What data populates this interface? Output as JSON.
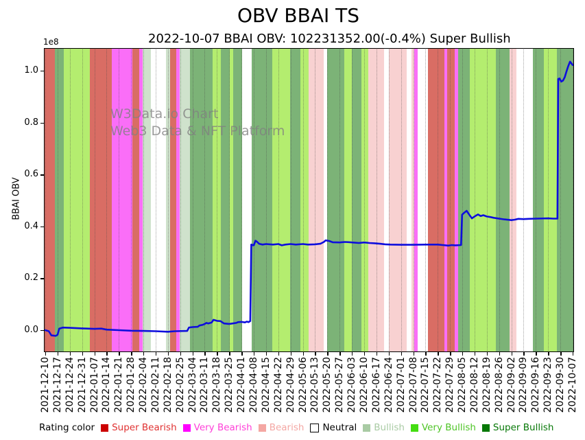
{
  "title": "OBV BBAI TS",
  "subtitle": "2022-10-07 BBAI OBV: 102231352.00(-0.4%) Super Bullish",
  "watermark": {
    "line1": "W3Data.io Chart",
    "line2": "Web3 Data & NFT Platform"
  },
  "y_axis": {
    "label": "BBAI OBV",
    "offset_text": "1e8",
    "ticks": [
      "0.0",
      "0.2",
      "0.4",
      "0.6",
      "0.8",
      "1.0"
    ]
  },
  "x_axis": {
    "ticks": [
      "2021-12-10",
      "2021-12-17",
      "2021-12-24",
      "2021-12-31",
      "2022-01-07",
      "2022-01-14",
      "2022-01-21",
      "2022-01-28",
      "2022-02-04",
      "2022-02-11",
      "2022-02-18",
      "2022-02-25",
      "2022-03-04",
      "2022-03-11",
      "2022-03-18",
      "2022-03-25",
      "2022-04-01",
      "2022-04-08",
      "2022-04-15",
      "2022-04-22",
      "2022-04-29",
      "2022-05-06",
      "2022-05-13",
      "2022-05-20",
      "2022-05-27",
      "2022-06-03",
      "2022-06-10",
      "2022-06-17",
      "2022-06-24",
      "2022-07-01",
      "2022-07-08",
      "2022-07-15",
      "2022-07-22",
      "2022-07-29",
      "2022-08-05",
      "2022-08-12",
      "2022-08-19",
      "2022-08-26",
      "2022-09-02",
      "2022-09-09",
      "2022-09-16",
      "2022-09-23",
      "2022-09-30",
      "2022-10-07"
    ]
  },
  "legend": {
    "title": "Rating color",
    "items": [
      {
        "label": "Super Bearish",
        "swatch": "#cc0000",
        "text_color": "#e03131",
        "swatch_border": "none"
      },
      {
        "label": "Very Bearish",
        "swatch": "#ff00ff",
        "text_color": "#ff3fd8",
        "swatch_border": "none"
      },
      {
        "label": "Bearish",
        "swatch": "#f4a7a3",
        "text_color": "#f4a7a3",
        "swatch_border": "none"
      },
      {
        "label": "Neutral",
        "swatch": "#ffffff",
        "text_color": "#000000",
        "swatch_border": "#000000"
      },
      {
        "label": "Bullish",
        "swatch": "#a9cba4",
        "text_color": "#a9cba4",
        "swatch_border": "none"
      },
      {
        "label": "Very Bullish",
        "swatch": "#44dd11",
        "text_color": "#4ec426",
        "swatch_border": "none"
      },
      {
        "label": "Super Bullish",
        "swatch": "#077807",
        "text_color": "#077807",
        "swatch_border": "none"
      }
    ]
  },
  "chart_data": {
    "type": "line",
    "title": "OBV BBAI TS",
    "series_name": "BBAI OBV",
    "unit_scale": "1e8",
    "line_color": "#0d0ddd",
    "grid": "vertical-dotted-weekly",
    "ylim": [
      -0.082,
      1.087
    ],
    "x_start_date": "2021-12-10",
    "x_end_date": "2022-10-07",
    "last_value": 102231352.0,
    "last_change_pct": -0.4,
    "last_rating": "Super Bullish",
    "points_day_value": [
      [
        0,
        0
      ],
      [
        2,
        -0.004
      ],
      [
        3.5,
        -0.02
      ],
      [
        6,
        -0.022
      ],
      [
        7,
        -0.018
      ],
      [
        8,
        0.006
      ],
      [
        10,
        0.01
      ],
      [
        14,
        0.009
      ],
      [
        21,
        0.007
      ],
      [
        28,
        0.005
      ],
      [
        32,
        0.006
      ],
      [
        35,
        0.002
      ],
      [
        42,
        0
      ],
      [
        49,
        -0.002
      ],
      [
        56,
        -0.003
      ],
      [
        63,
        -0.004
      ],
      [
        70,
        -0.006
      ],
      [
        74,
        -0.004
      ],
      [
        81,
        -0.003
      ],
      [
        82,
        0.01
      ],
      [
        84,
        0.012
      ],
      [
        87,
        0.013
      ],
      [
        88,
        0.018
      ],
      [
        90,
        0.021
      ],
      [
        91,
        0.024
      ],
      [
        92,
        0.028
      ],
      [
        93,
        0.026
      ],
      [
        95,
        0.03
      ],
      [
        96,
        0.04
      ],
      [
        97,
        0.038
      ],
      [
        98,
        0.036
      ],
      [
        100,
        0.035
      ],
      [
        102,
        0.026
      ],
      [
        105,
        0.024
      ],
      [
        107,
        0.026
      ],
      [
        109,
        0.028
      ],
      [
        110,
        0.031
      ],
      [
        112,
        0.032
      ],
      [
        114,
        0.03
      ],
      [
        115,
        0.033
      ],
      [
        116,
        0.031
      ],
      [
        117,
        0.035
      ],
      [
        117.6,
        0.33
      ],
      [
        119,
        0.327
      ],
      [
        120,
        0.345
      ],
      [
        121,
        0.34
      ],
      [
        122,
        0.333
      ],
      [
        124,
        0.33
      ],
      [
        126,
        0.332
      ],
      [
        130,
        0.33
      ],
      [
        133,
        0.332
      ],
      [
        135,
        0.327
      ],
      [
        137,
        0.33
      ],
      [
        140,
        0.332
      ],
      [
        143,
        0.33
      ],
      [
        147,
        0.332
      ],
      [
        150,
        0.33
      ],
      [
        154,
        0.331
      ],
      [
        157,
        0.333
      ],
      [
        159,
        0.34
      ],
      [
        160,
        0.346
      ],
      [
        162,
        0.344
      ],
      [
        164,
        0.339
      ],
      [
        168,
        0.338
      ],
      [
        171,
        0.34
      ],
      [
        174,
        0.339
      ],
      [
        179,
        0.336
      ],
      [
        182,
        0.338
      ],
      [
        185,
        0.336
      ],
      [
        188,
        0.335
      ],
      [
        191,
        0.333
      ],
      [
        194,
        0.331
      ],
      [
        197,
        0.33
      ],
      [
        203,
        0.329
      ],
      [
        210,
        0.329
      ],
      [
        217,
        0.33
      ],
      [
        224,
        0.33
      ],
      [
        227,
        0.328
      ],
      [
        230,
        0.326
      ],
      [
        232,
        0.328
      ],
      [
        234,
        0.327
      ],
      [
        237.3,
        0.328
      ],
      [
        237.9,
        0.445
      ],
      [
        239,
        0.452
      ],
      [
        240.5,
        0.46
      ],
      [
        242,
        0.445
      ],
      [
        243.5,
        0.431
      ],
      [
        245,
        0.438
      ],
      [
        247,
        0.446
      ],
      [
        248.5,
        0.44
      ],
      [
        250,
        0.443
      ],
      [
        252,
        0.438
      ],
      [
        254,
        0.436
      ],
      [
        256,
        0.433
      ],
      [
        259,
        0.43
      ],
      [
        262,
        0.427
      ],
      [
        266,
        0.424
      ],
      [
        268,
        0.426
      ],
      [
        270,
        0.429
      ],
      [
        273,
        0.428
      ],
      [
        276,
        0.429
      ],
      [
        280,
        0.43
      ],
      [
        287,
        0.431
      ],
      [
        290,
        0.43
      ],
      [
        292.3,
        0.43
      ],
      [
        292.8,
        0.968
      ],
      [
        293.5,
        0.97
      ],
      [
        294.5,
        0.958
      ],
      [
        295.5,
        0.962
      ],
      [
        296.5,
        0.975
      ],
      [
        297.5,
        0.998
      ],
      [
        298.5,
        1.018
      ],
      [
        299.5,
        1.035
      ],
      [
        300.3,
        1.028
      ],
      [
        301,
        1.022
      ]
    ],
    "band_colors": {
      "super_bearish": "#d96d64",
      "very_bearish": "#fa6ef8",
      "bearish": "#f8d1d1",
      "neutral": "#ffffff",
      "bullish": "#cfe2cc",
      "very_bullish": "#b4ed6f",
      "super_bullish": "#7cb377"
    },
    "rating_bands_frac": [
      [
        0,
        0.021,
        "super_bearish"
      ],
      [
        0.021,
        0.038,
        "super_bullish"
      ],
      [
        0.038,
        0.087,
        "very_bullish"
      ],
      [
        0.087,
        0.128,
        "super_bearish"
      ],
      [
        0.128,
        0.167,
        "very_bearish"
      ],
      [
        0.167,
        0.18,
        "super_bearish"
      ],
      [
        0.18,
        0.186,
        "very_bearish"
      ],
      [
        0.186,
        0.202,
        "bullish"
      ],
      [
        0.202,
        0.23,
        "neutral"
      ],
      [
        0.23,
        0.238,
        "bullish"
      ],
      [
        0.238,
        0.25,
        "super_bearish"
      ],
      [
        0.25,
        0.256,
        "very_bearish"
      ],
      [
        0.256,
        0.276,
        "bullish"
      ],
      [
        0.276,
        0.318,
        "super_bullish"
      ],
      [
        0.318,
        0.334,
        "very_bullish"
      ],
      [
        0.334,
        0.351,
        "super_bullish"
      ],
      [
        0.351,
        0.357,
        "very_bullish"
      ],
      [
        0.357,
        0.374,
        "super_bullish"
      ],
      [
        0.374,
        0.392,
        "neutral"
      ],
      [
        0.392,
        0.431,
        "super_bullish"
      ],
      [
        0.431,
        0.464,
        "very_bullish"
      ],
      [
        0.464,
        0.484,
        "super_bullish"
      ],
      [
        0.484,
        0.499,
        "very_bullish"
      ],
      [
        0.499,
        0.528,
        "bearish"
      ],
      [
        0.528,
        0.534,
        "neutral"
      ],
      [
        0.534,
        0.567,
        "super_bullish"
      ],
      [
        0.567,
        0.581,
        "very_bullish"
      ],
      [
        0.581,
        0.599,
        "super_bullish"
      ],
      [
        0.599,
        0.612,
        "very_bullish"
      ],
      [
        0.612,
        0.642,
        "bearish"
      ],
      [
        0.642,
        0.651,
        "neutral"
      ],
      [
        0.651,
        0.684,
        "bearish"
      ],
      [
        0.684,
        0.693,
        "neutral"
      ],
      [
        0.693,
        0.699,
        "bearish"
      ],
      [
        0.699,
        0.705,
        "very_bearish"
      ],
      [
        0.705,
        0.724,
        "neutral"
      ],
      [
        0.724,
        0.755,
        "super_bearish"
      ],
      [
        0.755,
        0.761,
        "very_bearish"
      ],
      [
        0.761,
        0.775,
        "super_bearish"
      ],
      [
        0.775,
        0.781,
        "very_bearish"
      ],
      [
        0.781,
        0.803,
        "super_bullish"
      ],
      [
        0.803,
        0.852,
        "very_bullish"
      ],
      [
        0.852,
        0.878,
        "super_bullish"
      ],
      [
        0.878,
        0.891,
        "bearish"
      ],
      [
        0.891,
        0.922,
        "neutral"
      ],
      [
        0.922,
        0.943,
        "super_bullish"
      ],
      [
        0.943,
        0.968,
        "very_bullish"
      ],
      [
        0.968,
        1,
        "super_bullish"
      ]
    ]
  }
}
